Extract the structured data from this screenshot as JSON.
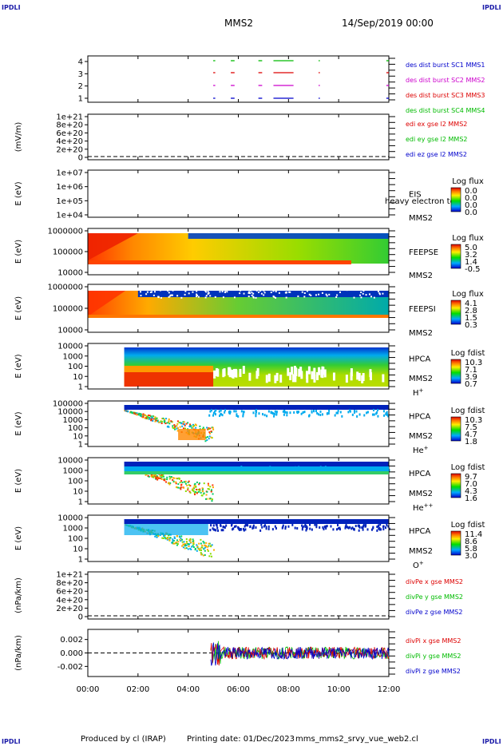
{
  "corners": {
    "tl": "IPDLI",
    "tr": "IPDLI",
    "bl": "IPDLI",
    "br": "IPDLI"
  },
  "header": {
    "spacecraft": "MMS2",
    "date": "14/Sep/2019 00:00"
  },
  "footer": {
    "produced": "Produced by cl (IRAP)",
    "printing": "Printing date: 01/Dec/2023",
    "file": "mms_mms2_srvy_vue_web2.cl"
  },
  "x_axis": {
    "ticks": [
      "00:00",
      "02:00",
      "04:00",
      "06:00",
      "08:00",
      "10:00",
      "12:00"
    ],
    "range_hours": [
      0,
      12
    ]
  },
  "colors": {
    "red": "#dd0000",
    "magenta": "#cc00cc",
    "green": "#00bb00",
    "blue": "#0000cc",
    "dark_blue": "#0a0aa0"
  },
  "chart_data": [
    {
      "type": "scatter",
      "id": "burst",
      "yticks": [
        "4",
        "3",
        "2",
        "1"
      ],
      "legend": [
        {
          "text": "des dist burst SC1 MMS1",
          "color": "#0000cc"
        },
        {
          "text": "des dist burst SC2 MMS2",
          "color": "#cc00cc"
        },
        {
          "text": "des dist burst SC3 MMS3",
          "color": "#dd0000"
        },
        {
          "text": "des dist burst SC4 MMS4",
          "color": "#00bb00"
        }
      ]
    },
    {
      "type": "line",
      "id": "edi",
      "ylabel": "(mV/m)",
      "yticks": [
        "1e+21",
        "8e+20",
        "6e+20",
        "4e+20",
        "2e+20",
        "0"
      ],
      "legend": [
        {
          "text": "edi ex gse l2 MMS2",
          "color": "#dd0000"
        },
        {
          "text": "edi ey gse l2 MMS2",
          "color": "#00bb00"
        },
        {
          "text": "edi ez gse l2 MMS2",
          "color": "#0000cc"
        }
      ]
    },
    {
      "type": "heatmap",
      "id": "eis",
      "ylabel": "E (eV)",
      "yticks": [
        "1e+07",
        "1e+06",
        "1e+05",
        "1e+04"
      ],
      "name": "EIS",
      "sc": "MMS2",
      "overlap_text": "heavy electron to",
      "cbar_title": "Log flux",
      "cbar_ticks": [
        "0.0",
        "0.0",
        "0.0",
        "0.0"
      ]
    },
    {
      "type": "heatmap",
      "id": "feepse",
      "ylabel": "E (eV)",
      "yticks": [
        "1000000",
        "100000",
        "10000"
      ],
      "name": "FEEPSE",
      "sc": "MMS2",
      "cbar_title": "Log flux",
      "cbar_ticks": [
        "5.0",
        "3.2",
        "1.4",
        "-0.5"
      ]
    },
    {
      "type": "heatmap",
      "id": "feepsi",
      "ylabel": "E (eV)",
      "yticks": [
        "1000000",
        "100000",
        "10000"
      ],
      "name": "FEEPSI",
      "sc": "MMS2",
      "cbar_title": "Log flux",
      "cbar_ticks": [
        "4.1",
        "2.8",
        "1.5",
        "0.3"
      ]
    },
    {
      "type": "heatmap",
      "id": "hpca_h",
      "ylabel": "E (eV)",
      "yticks": [
        "10000",
        "1000",
        "100",
        "10",
        "1"
      ],
      "name": "HPCA",
      "sc": "MMS2",
      "species": "H",
      "charge": "+",
      "cbar_title": "Log fdist",
      "cbar_ticks": [
        "10.3",
        "7.1",
        "3.9",
        "0.7"
      ]
    },
    {
      "type": "heatmap",
      "id": "hpca_he",
      "ylabel": "E (eV)",
      "yticks": [
        "100000",
        "10000",
        "1000",
        "100",
        "10",
        "1"
      ],
      "name": "HPCA",
      "sc": "MMS2",
      "species": "He",
      "charge": "+",
      "cbar_title": "Log fdist",
      "cbar_ticks": [
        "10.3",
        "7.5",
        "4.7",
        "1.8"
      ]
    },
    {
      "type": "heatmap",
      "id": "hpca_hepp",
      "ylabel": "E (eV)",
      "yticks": [
        "10000",
        "1000",
        "100",
        "10",
        "1"
      ],
      "name": "HPCA",
      "sc": "MMS2",
      "species": "He",
      "charge": "++",
      "cbar_title": "Log fdist",
      "cbar_ticks": [
        "9.7",
        "7.0",
        "4.3",
        "1.6"
      ]
    },
    {
      "type": "heatmap",
      "id": "hpca_o",
      "ylabel": "E (eV)",
      "yticks": [
        "10000",
        "1000",
        "100",
        "10",
        "1"
      ],
      "name": "HPCA",
      "sc": "MMS2",
      "species": "O",
      "charge": "+",
      "cbar_title": "Log fdist",
      "cbar_ticks": [
        "11.4",
        "8.6",
        "5.8",
        "3.0"
      ]
    },
    {
      "type": "line",
      "id": "divpe",
      "ylabel": "(nPa/km)",
      "yticks": [
        "1e+21",
        "8e+20",
        "6e+20",
        "4e+20",
        "2e+20",
        "0"
      ],
      "legend": [
        {
          "text": "divPe x gse MMS2",
          "color": "#dd0000"
        },
        {
          "text": "divPe y gse MMS2",
          "color": "#00bb00"
        },
        {
          "text": "divPe z gse MMS2",
          "color": "#0000cc"
        }
      ]
    },
    {
      "type": "line",
      "id": "divpi",
      "ylabel": "(nPa/km)",
      "yticks": [
        "0.002",
        "0.000",
        "-0.002"
      ],
      "legend": [
        {
          "text": "divPi x gse MMS2",
          "color": "#dd0000"
        },
        {
          "text": "divPi y gse MMS2",
          "color": "#00bb00"
        },
        {
          "text": "divPi z gse MMS2",
          "color": "#0000cc"
        }
      ]
    }
  ]
}
